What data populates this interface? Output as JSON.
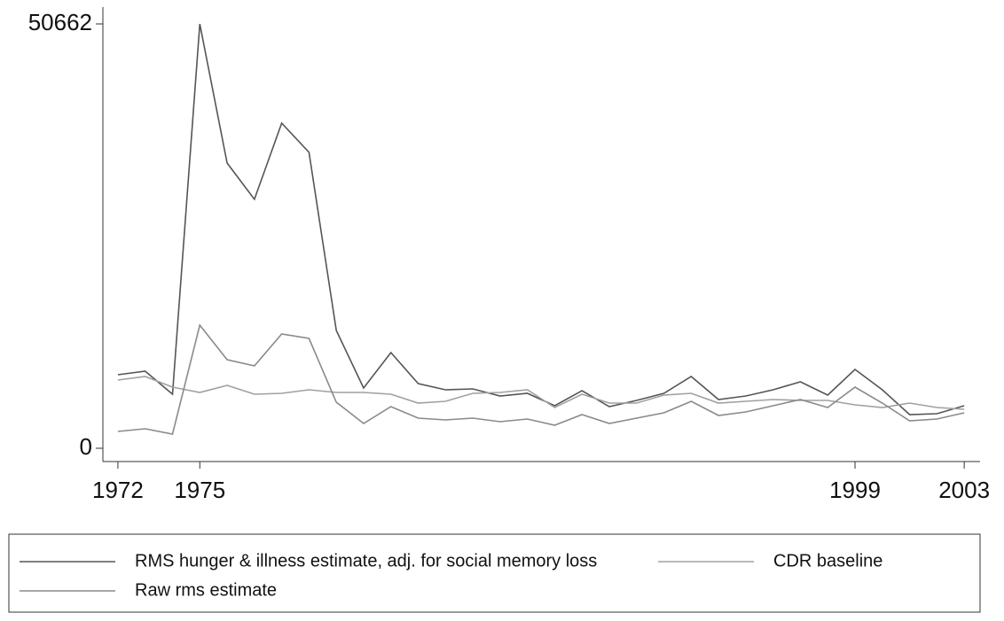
{
  "chart_data": {
    "type": "line",
    "x": [
      1972,
      1973,
      1974,
      1975,
      1976,
      1977,
      1978,
      1979,
      1980,
      1981,
      1982,
      1983,
      1984,
      1985,
      1986,
      1987,
      1988,
      1989,
      1990,
      1991,
      1992,
      1993,
      1994,
      1995,
      1996,
      1997,
      1998,
      1999,
      2000,
      2001,
      2002,
      2003
    ],
    "series": [
      {
        "name": "RMS hunger & illness estimate, adj. for social memory loss",
        "color": "#555555",
        "values": [
          8779,
          9202,
          6452,
          50662,
          34058,
          29721,
          38818,
          35327,
          14067,
          7192,
          11423,
          7721,
          6981,
          7087,
          6240,
          6558,
          5077,
          6875,
          4971,
          5712,
          6558,
          8567,
          5817,
          6240,
          6981,
          7933,
          6346,
          9414,
          6981,
          4019,
          4125,
          5077
        ]
      },
      {
        "name": "CDR baseline",
        "color": "#a0a0a0",
        "values": [
          8144,
          8567,
          7298,
          6664,
          7510,
          6452,
          6558,
          6981,
          6664,
          6664,
          6452,
          5394,
          5606,
          6558,
          6664,
          6981,
          4865,
          6452,
          5394,
          5394,
          6346,
          6558,
          5394,
          5606,
          5817,
          5712,
          5712,
          5183,
          4865,
          5394,
          4865,
          4654
        ]
      },
      {
        "name": "Raw rms estimate",
        "color": "#8a8a8a",
        "values": [
          2010,
          2327,
          1692,
          14702,
          10577,
          9837,
          13644,
          13115,
          5500,
          2962,
          4971,
          3596,
          3385,
          3596,
          3173,
          3490,
          2750,
          4019,
          2962,
          3596,
          4231,
          5606,
          3913,
          4337,
          5077,
          5817,
          4865,
          7298,
          5394,
          3279,
          3490,
          4231
        ]
      }
    ],
    "xlim": [
      1971.45,
      2003.58
    ],
    "xticks": [
      1972,
      1975,
      1999,
      2003
    ],
    "ylim": [
      -1586,
      52672
    ],
    "yticks": [
      0,
      50662
    ]
  }
}
